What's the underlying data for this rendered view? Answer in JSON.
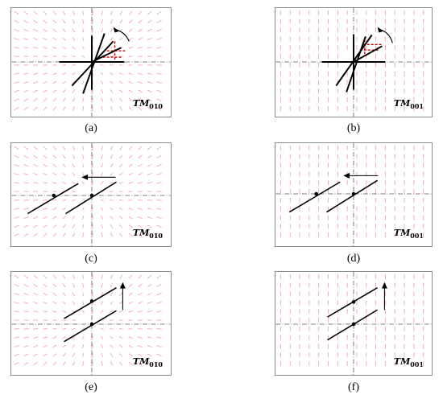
{
  "figure": {
    "panels": [
      {
        "id": "a",
        "caption": "(a)",
        "mode_base": "TM",
        "mode_sub": "010",
        "motion": "rotation"
      },
      {
        "id": "b",
        "caption": "(b)",
        "mode_base": "TM",
        "mode_sub": "001",
        "motion": "rotation"
      },
      {
        "id": "c",
        "caption": "(c)",
        "mode_base": "TM",
        "mode_sub": "010",
        "motion": "horizontal shift"
      },
      {
        "id": "d",
        "caption": "(d)",
        "mode_base": "TM",
        "mode_sub": "001",
        "motion": "horizontal shift"
      },
      {
        "id": "e",
        "caption": "(e)",
        "mode_base": "TM",
        "mode_sub": "010",
        "motion": "vertical shift"
      },
      {
        "id": "f",
        "caption": "(f)",
        "mode_base": "TM",
        "mode_sub": "001",
        "motion": "vertical shift"
      }
    ],
    "colors": {
      "field_arrows": "#f2a0a0",
      "highlight": "#cc0000",
      "lines": "#000000",
      "crosshair": "#555555",
      "border": "#8c8c8c"
    }
  }
}
